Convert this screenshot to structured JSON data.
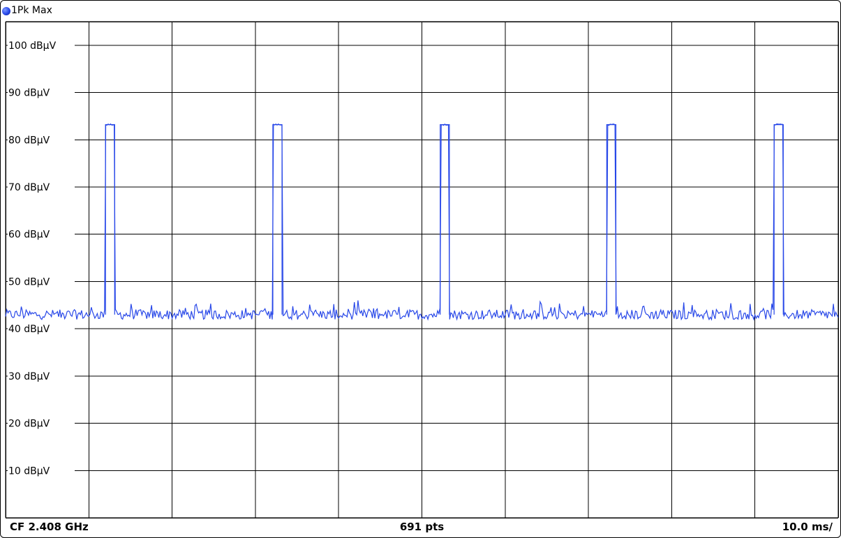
{
  "header": {
    "trace_label": "1Pk Max",
    "trace_color": "#2747e8"
  },
  "footer": {
    "center_frequency": "CF 2.408 GHz",
    "points": "691 pts",
    "time_per_div": "10.0 ms/"
  },
  "chart_data": {
    "type": "line",
    "ylim": [
      0,
      105
    ],
    "xlim": [
      0,
      100
    ],
    "y_ticks": [
      {
        "value": 100,
        "label": "100 dBµV"
      },
      {
        "value": 90,
        "label": "90 dBµV"
      },
      {
        "value": 80,
        "label": "80 dBµV"
      },
      {
        "value": 70,
        "label": "70 dBµV"
      },
      {
        "value": 60,
        "label": "60 dBµV"
      },
      {
        "value": 50,
        "label": "50 dBµV"
      },
      {
        "value": 40,
        "label": "40 dBµV"
      },
      {
        "value": 30,
        "label": "30 dBµV"
      },
      {
        "value": 20,
        "label": "20 dBµV"
      },
      {
        "value": 10,
        "label": "10 dBµV"
      }
    ],
    "x_divisions": 10,
    "grid": true,
    "series": [
      {
        "color": "#2747e8",
        "noise_floor": 43,
        "noise_amplitude": 1.3,
        "pulse_level": 83.2,
        "pulses": [
          {
            "start": 12.0,
            "end": 13.1
          },
          {
            "start": 32.1,
            "end": 33.2
          },
          {
            "start": 52.2,
            "end": 53.3
          },
          {
            "start": 72.2,
            "end": 73.3
          },
          {
            "start": 92.3,
            "end": 93.4
          }
        ]
      }
    ]
  }
}
